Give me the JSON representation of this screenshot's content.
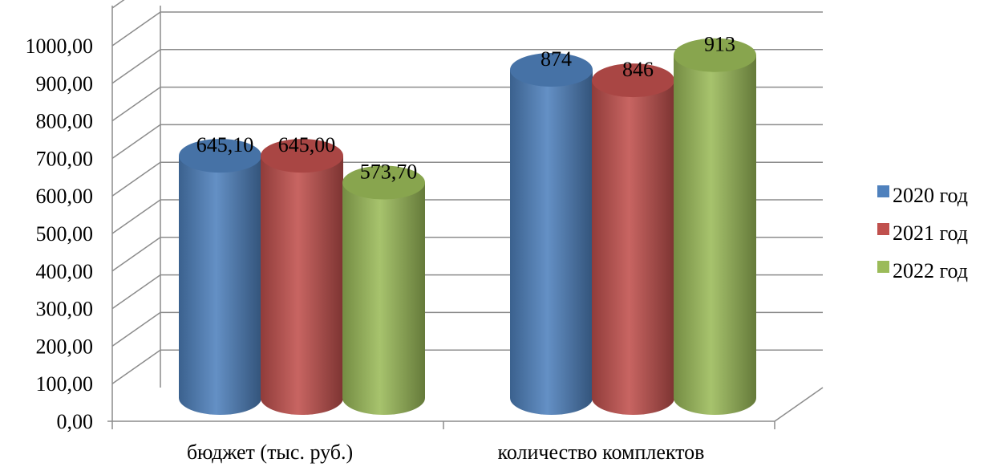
{
  "chart_data": {
    "type": "bar",
    "style": "3d-cylinder",
    "categories": [
      "бюджет (тыс. руб.)",
      "количество комплектов"
    ],
    "series": [
      {
        "name": "2020 год",
        "values": [
          645.1,
          874
        ],
        "labels": [
          "645,10",
          "874"
        ],
        "color": "#4F81BD"
      },
      {
        "name": "2021 год",
        "values": [
          645.0,
          846
        ],
        "labels": [
          "645,00",
          "846"
        ],
        "color": "#C0504D"
      },
      {
        "name": "2022 год",
        "values": [
          573.7,
          913
        ],
        "labels": [
          "573,70",
          "913"
        ],
        "color": "#9BBB59"
      }
    ],
    "y_ticks": [
      "0,00",
      "100,00",
      "200,00",
      "300,00",
      "400,00",
      "500,00",
      "600,00",
      "700,00",
      "800,00",
      "900,00",
      "1000,00"
    ],
    "ylim": [
      0,
      1000
    ],
    "grid": true,
    "legend": "right",
    "title": "",
    "xlabel": "",
    "ylabel": ""
  }
}
